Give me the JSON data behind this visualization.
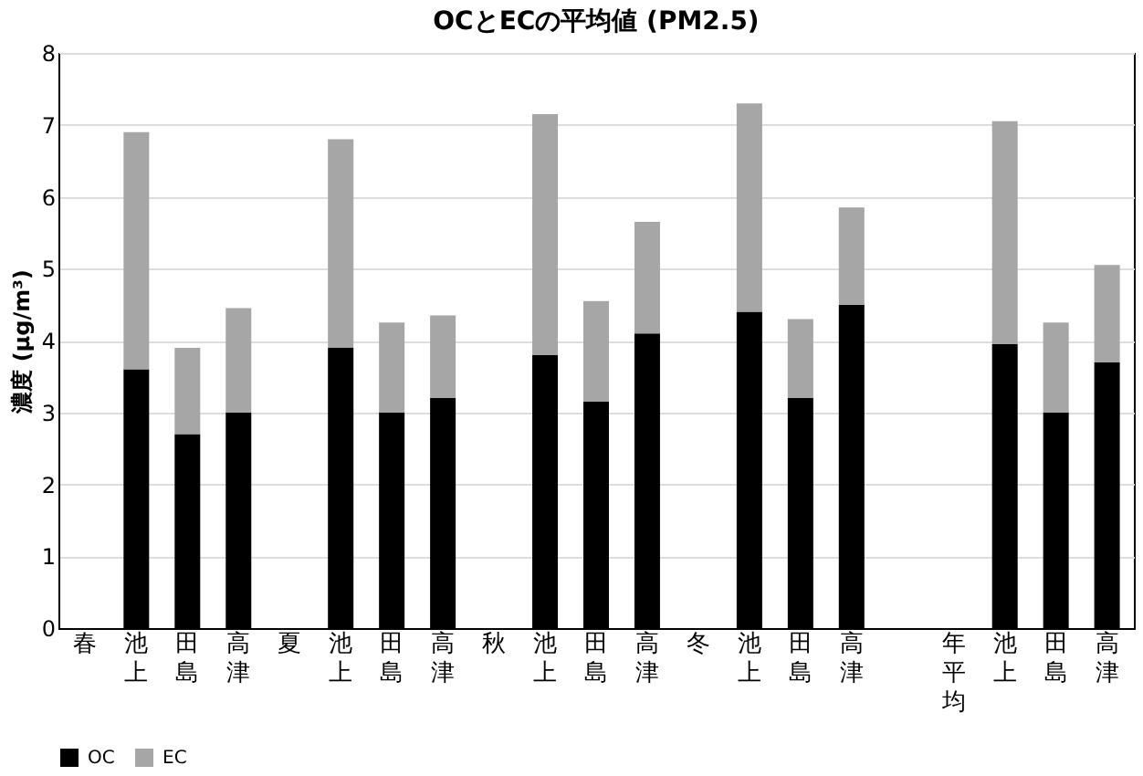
{
  "chart_data": {
    "type": "bar",
    "title": "OCとECの平均値 (PM2.5)",
    "ylabel": "濃度 (μg/m³)",
    "categories": [
      "春",
      "池上",
      "田島",
      "高津",
      "夏",
      "池上",
      "田島",
      "高津",
      "秋",
      "池上",
      "田島",
      "高津",
      "冬",
      "池上",
      "田島",
      "高津",
      null,
      "年平均",
      "池上",
      "田島",
      "高津"
    ],
    "stacked": true,
    "series": [
      {
        "name": "OC",
        "color": "#000000",
        "values": [
          null,
          3.6,
          2.7,
          3.0,
          null,
          3.9,
          3.0,
          3.2,
          null,
          3.8,
          3.15,
          4.1,
          null,
          4.4,
          3.2,
          4.5,
          null,
          null,
          3.95,
          3.0,
          3.7
        ]
      },
      {
        "name": "EC",
        "color": "#a6a6a6",
        "values": [
          null,
          3.3,
          1.2,
          1.45,
          null,
          2.9,
          1.25,
          1.15,
          null,
          3.35,
          1.4,
          1.55,
          null,
          2.9,
          1.1,
          1.35,
          null,
          null,
          3.1,
          1.25,
          1.35
        ]
      }
    ],
    "ylim": [
      0,
      8
    ],
    "yticks": [
      0,
      1,
      2,
      3,
      4,
      5,
      6,
      7,
      8
    ],
    "grid": "y",
    "legend": "bottom"
  }
}
